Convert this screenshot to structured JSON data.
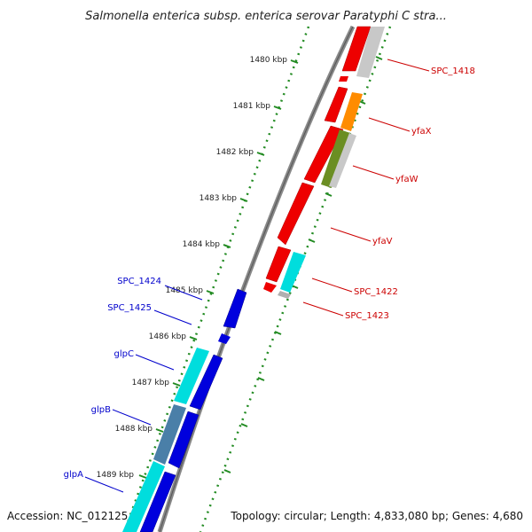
{
  "title": "Salmonella enterica subsp. enterica serovar Paratyphi C stra...",
  "accession_text": "Accession: NC_012125",
  "summary_text": "Topology: circular; Length: 4,833,080 bp; Genes: 4,680",
  "ruler": [
    "1480 kbp",
    "1481 kbp",
    "1482 kbp",
    "1483 kbp",
    "1484 kbp",
    "1485 kbp",
    "1486 kbp",
    "1487 kbp",
    "1488 kbp",
    "1489 kbp"
  ],
  "right_labels": [
    "SPC_1418",
    "yfaX",
    "yfaW",
    "yfaV",
    "SPC_1422",
    "SPC_1423"
  ],
  "left_labels": [
    "SPC_1424",
    "SPC_1425",
    "glpC",
    "glpB",
    "glpA"
  ],
  "colors": {
    "forward_strand_genes": "#ee0000",
    "reverse_strand_genes": "#0000dd",
    "accent_orange": "#ff8c00",
    "accent_olive": "#6b8e23",
    "accent_cyan": "#00dddd",
    "accent_steelblue": "#4a7fa8",
    "ruler_dots": "#228b22",
    "label_red": "#cc0000",
    "label_blue": "#0000cc"
  }
}
